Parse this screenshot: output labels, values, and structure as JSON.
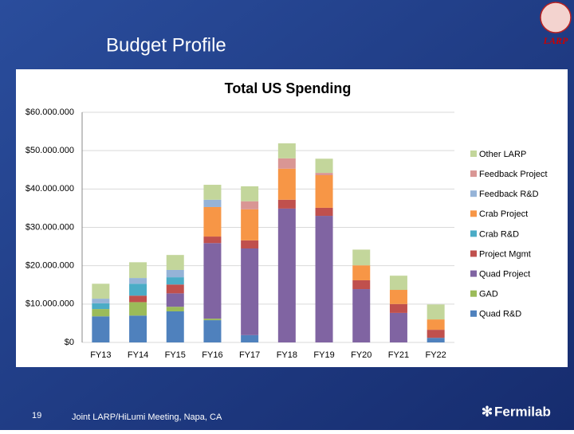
{
  "slide": {
    "title": "Budget Profile",
    "slide_number": "19",
    "footer": "Joint LARP/HiLumi Meeting, Napa, CA",
    "logo_text": "LARP",
    "brand": "Fermilab"
  },
  "chart_data": {
    "type": "stacked_bar",
    "title": "Total US Spending",
    "categories": [
      "FY13",
      "FY14",
      "FY15",
      "FY16",
      "FY17",
      "FY18",
      "FY19",
      "FY20",
      "FY21",
      "FY22"
    ],
    "series": [
      {
        "name": "Quad R&D",
        "color": "#4f81bd",
        "values": [
          6800000,
          7000000,
          8100000,
          5800000,
          1900000,
          0,
          0,
          0,
          0,
          1200000
        ]
      },
      {
        "name": "GAD",
        "color": "#9bbb59",
        "values": [
          1900000,
          3500000,
          1200000,
          400000,
          0,
          0,
          0,
          0,
          0,
          0
        ]
      },
      {
        "name": "Quad Project",
        "color": "#8064a2",
        "values": [
          0,
          0,
          3500000,
          19700000,
          22600000,
          34900000,
          33000000,
          13900000,
          7700000,
          0
        ]
      },
      {
        "name": "Project Mgmt",
        "color": "#c0504d",
        "values": [
          0,
          1700000,
          2300000,
          1700000,
          2100000,
          2300000,
          2100000,
          2300000,
          2300000,
          2100000
        ]
      },
      {
        "name": "Crab R&D",
        "color": "#4bacc6",
        "values": [
          1500000,
          3100000,
          1900000,
          0,
          0,
          0,
          0,
          0,
          0,
          0
        ]
      },
      {
        "name": "Crab Project",
        "color": "#f79646",
        "values": [
          0,
          0,
          0,
          7700000,
          8100000,
          8100000,
          8500000,
          3900000,
          3700000,
          2700000
        ]
      },
      {
        "name": "Feedback R&D",
        "color": "#95b3d7",
        "values": [
          1200000,
          1500000,
          1900000,
          1900000,
          0,
          0,
          0,
          0,
          0,
          0
        ]
      },
      {
        "name": "Feedback Project",
        "color": "#d99694",
        "values": [
          0,
          0,
          0,
          0,
          2100000,
          2700000,
          600000,
          0,
          0,
          0
        ]
      },
      {
        "name": "Other LARP",
        "color": "#c3d69b",
        "values": [
          3900000,
          4100000,
          3900000,
          3900000,
          3900000,
          3900000,
          3700000,
          4100000,
          3700000,
          3900000
        ]
      }
    ],
    "ylim": [
      0,
      60000000
    ],
    "yticks": [
      {
        "value": 0,
        "label": "$0"
      },
      {
        "value": 10000000,
        "label": "$10.000.000"
      },
      {
        "value": 20000000,
        "label": "$20.000.000"
      },
      {
        "value": 30000000,
        "label": "$30.000.000"
      },
      {
        "value": 40000000,
        "label": "$40.000.000"
      },
      {
        "value": 50000000,
        "label": "$50.000.000"
      },
      {
        "value": 60000000,
        "label": "$60.000.000"
      }
    ],
    "grid": true,
    "legend": "right"
  }
}
